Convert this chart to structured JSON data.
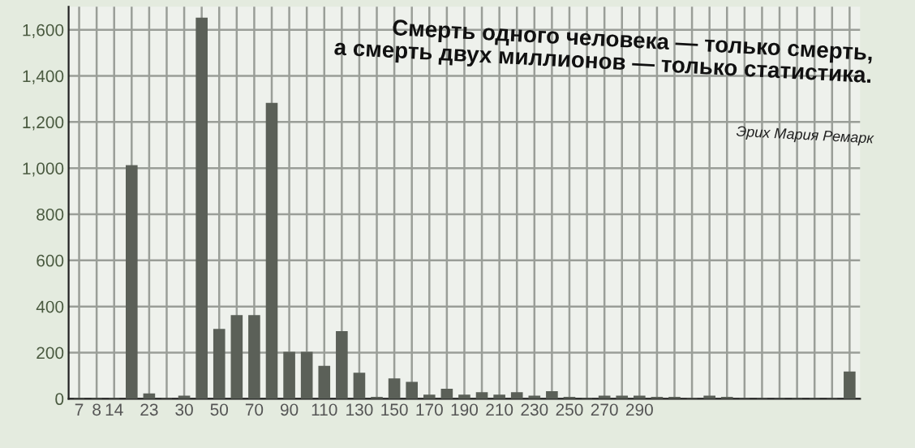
{
  "chart_data": {
    "type": "bar",
    "categories": [
      "7",
      "8",
      "14",
      null,
      "23",
      null,
      "30",
      null,
      "50",
      null,
      "70",
      null,
      "90",
      null,
      "110",
      null,
      "130",
      null,
      "150",
      null,
      "170",
      null,
      "190",
      null,
      "210",
      null,
      "230",
      null,
      "250",
      null,
      "270",
      null,
      "290",
      null,
      null,
      null,
      null,
      null,
      null,
      null,
      null,
      null,
      null,
      null,
      null
    ],
    "values": [
      0,
      0,
      0,
      1010,
      20,
      0,
      10,
      1650,
      300,
      360,
      360,
      1280,
      200,
      200,
      140,
      290,
      110,
      5,
      85,
      70,
      15,
      40,
      15,
      25,
      15,
      25,
      10,
      30,
      5,
      0,
      10,
      10,
      10,
      5,
      5,
      0,
      10,
      5,
      0,
      0,
      0,
      0,
      0,
      0,
      115
    ],
    "color": "#5b6058",
    "ylim": [
      0,
      1700
    ],
    "yticks": [
      0,
      200,
      400,
      600,
      800,
      {
        "value": 1000,
        "label": "1,000"
      },
      {
        "value": 1200,
        "label": "1,200"
      },
      {
        "value": 1400,
        "label": "1,400"
      },
      {
        "value": 1600,
        "label": "1,600"
      }
    ],
    "grid": true,
    "annotations": [
      "Смерть одного человека — только смерть,\nа смерть двух миллионов — только статистика.",
      "Эрих Мария Ремарк"
    ]
  }
}
